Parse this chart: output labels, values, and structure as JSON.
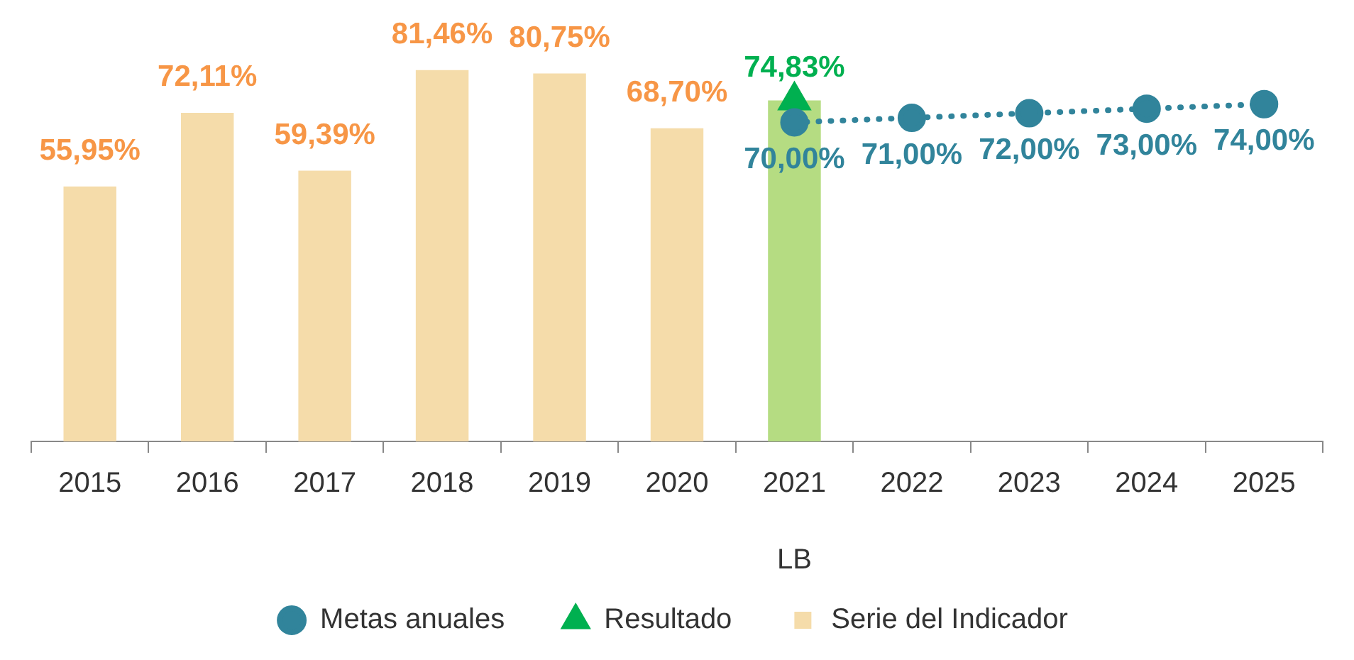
{
  "chart_data": {
    "type": "bar",
    "categories": [
      "2015",
      "2016",
      "2017",
      "2018",
      "2019",
      "2020",
      "2021",
      "2022",
      "2023",
      "2024",
      "2025"
    ],
    "series": [
      {
        "name": "Serie del Indicador",
        "color": "#f5dcaa",
        "colors": [
          "#f5dcaa",
          "#f5dcaa",
          "#f5dcaa",
          "#f5dcaa",
          "#f5dcaa",
          "#f5dcaa",
          "#b5dc82",
          null,
          null,
          null,
          null
        ],
        "values": [
          55.95,
          72.11,
          59.39,
          81.46,
          80.75,
          68.7,
          74.83,
          null,
          null,
          null,
          null
        ],
        "value_labels": [
          "55,95%",
          "72,11%",
          "59,39%",
          "81,46%",
          "80,75%",
          "68,70%",
          null,
          null,
          null,
          null,
          null
        ]
      },
      {
        "name": "Metas anuales",
        "type": "line",
        "color": "#31849b",
        "marker": "circle",
        "line_style": "dotted",
        "values": [
          null,
          null,
          null,
          null,
          null,
          null,
          70,
          71,
          72,
          73,
          74
        ],
        "value_labels": [
          null,
          null,
          null,
          null,
          null,
          null,
          "70,00%",
          "71,00%",
          "72,00%",
          "73,00%",
          "74,00%"
        ]
      },
      {
        "name": "Resultado",
        "type": "line",
        "color": "#00b050",
        "marker": "triangle",
        "line_style": "solid",
        "values": [
          null,
          null,
          null,
          null,
          null,
          null,
          74.83,
          null,
          null,
          null,
          null
        ],
        "value_labels": [
          null,
          null,
          null,
          null,
          null,
          null,
          "74,83%",
          null,
          null,
          null,
          null
        ]
      }
    ],
    "annotations": [
      "LB"
    ],
    "tick_labels": "x",
    "grid": false,
    "legend": "bottom"
  }
}
